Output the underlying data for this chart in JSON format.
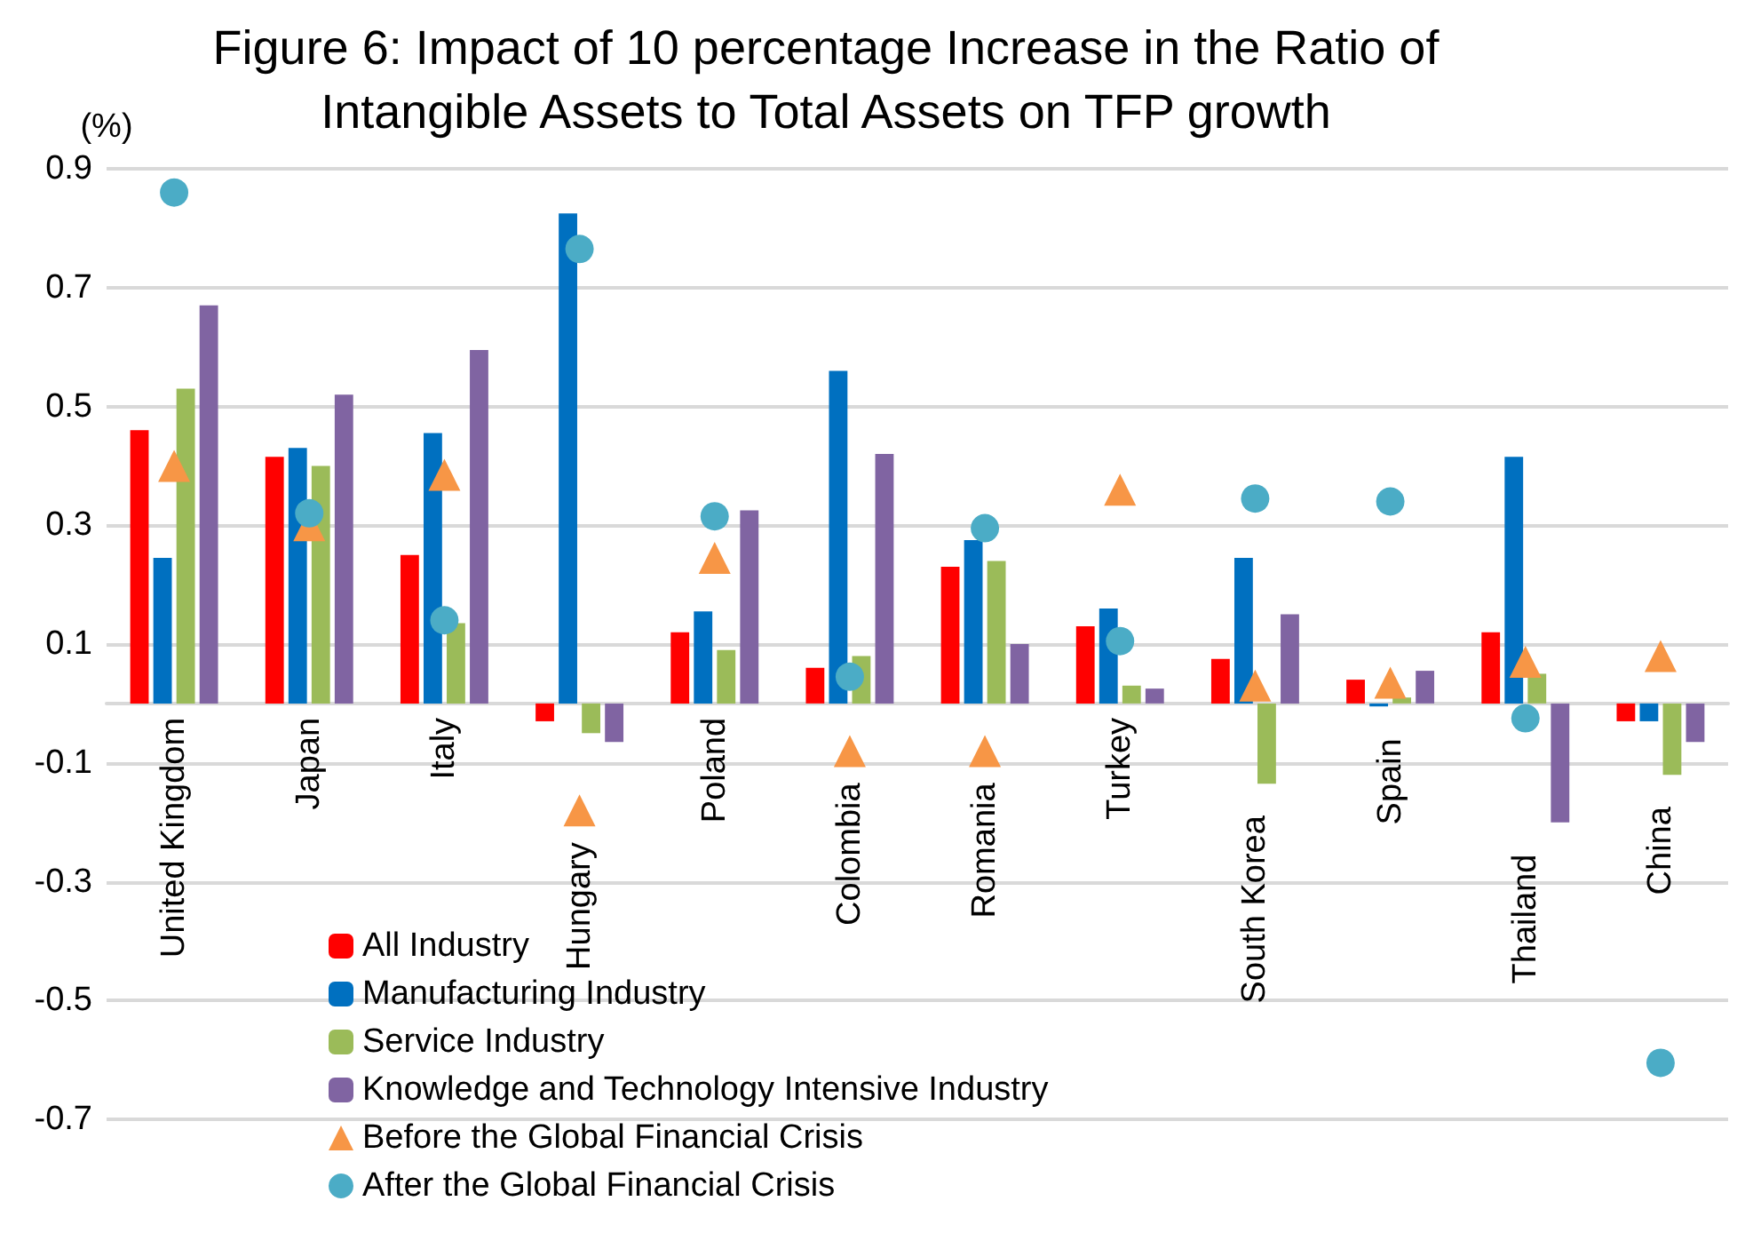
{
  "chart_data": {
    "type": "bar",
    "title": "Figure 6: Impact of 10 percentage Increase in the Ratio of\nIntangible Assets to Total Assets on TFP growth",
    "ylabel": "(%)",
    "categories": [
      "United Kingdom",
      "Japan",
      "Italy",
      "Hungary",
      "Poland",
      "Colombia",
      "Romania",
      "Turkey",
      "South Korea",
      "Spain",
      "Thailand",
      "China"
    ],
    "series": [
      {
        "name": "All Industry",
        "color": "#ff0000",
        "values": [
          0.46,
          0.415,
          0.25,
          -0.03,
          0.12,
          0.06,
          0.23,
          0.13,
          0.075,
          0.04,
          0.12,
          -0.03
        ]
      },
      {
        "name": "Manufacturing Industry",
        "color": "#0070c0",
        "values": [
          0.245,
          0.43,
          0.455,
          0.825,
          0.155,
          0.56,
          0.275,
          0.16,
          0.245,
          -0.005,
          0.415,
          -0.03
        ]
      },
      {
        "name": "Service Industry",
        "color": "#9bbb59",
        "values": [
          0.53,
          0.4,
          0.135,
          -0.05,
          0.09,
          0.08,
          0.24,
          0.03,
          -0.135,
          0.01,
          0.05,
          -0.12
        ]
      },
      {
        "name": "Knowledge and Technology Intensive Industry",
        "color": "#8064a2",
        "values": [
          0.67,
          0.52,
          0.595,
          -0.065,
          0.325,
          0.42,
          0.1,
          0.025,
          0.15,
          0.055,
          -0.2,
          -0.065
        ]
      },
      {
        "name": "Before the Global Financial Crisis",
        "type": "scatter",
        "marker": "triangle",
        "color": "#f79646",
        "x": [
          "United Kingdom",
          "Japan",
          "Italy",
          "Hungary",
          "Poland",
          "Colombia",
          "Romania",
          "Turkey",
          "South Korea",
          "Spain",
          "Thailand",
          "China"
        ],
        "values": [
          0.4,
          0.3,
          0.385,
          -0.18,
          0.245,
          -0.08,
          -0.08,
          0.36,
          0.03,
          0.035,
          0.07,
          0.08
        ]
      },
      {
        "name": "After the Global Financial Crisis",
        "type": "scatter",
        "marker": "circle",
        "color": "#4bacc6",
        "x": [
          "United Kingdom",
          "Japan",
          "Italy",
          "Hungary",
          "Poland",
          "Colombia",
          "Romania",
          "Turkey",
          "South Korea",
          "Spain",
          "Thailand",
          "China"
        ],
        "values": [
          0.86,
          0.32,
          0.14,
          0.765,
          0.315,
          0.045,
          0.295,
          0.105,
          0.345,
          0.34,
          -0.025,
          -0.605
        ]
      }
    ],
    "ylim": [
      -0.7,
      0.9
    ],
    "yticks": [
      -0.7,
      -0.5,
      -0.3,
      -0.1,
      0.1,
      0.3,
      0.5,
      0.7,
      0.9
    ],
    "grid": "y",
    "legend": "bottom left"
  }
}
